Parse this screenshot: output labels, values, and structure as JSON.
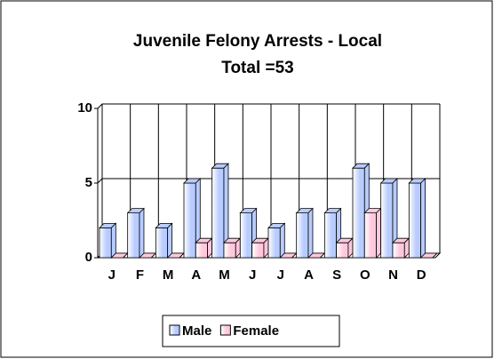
{
  "chart_data": {
    "type": "bar3d",
    "title": "Juvenile Felony Arrests - Local",
    "subtitle": "Total =53",
    "categories": [
      "J",
      "F",
      "M",
      "A",
      "M",
      "J",
      "J",
      "A",
      "S",
      "O",
      "N",
      "D"
    ],
    "series": [
      {
        "name": "Male",
        "color": "#b8ccff",
        "values": [
          2,
          3,
          2,
          5,
          6,
          3,
          2,
          3,
          3,
          6,
          5,
          5
        ]
      },
      {
        "name": "Female",
        "color": "#ffc8dc",
        "values": [
          0,
          0,
          0,
          1,
          1,
          1,
          0,
          0,
          1,
          3,
          1,
          0
        ]
      }
    ],
    "ylim": [
      0,
      10
    ],
    "yticks": [
      0,
      5,
      10
    ],
    "grid": true,
    "legend": "bottom"
  }
}
